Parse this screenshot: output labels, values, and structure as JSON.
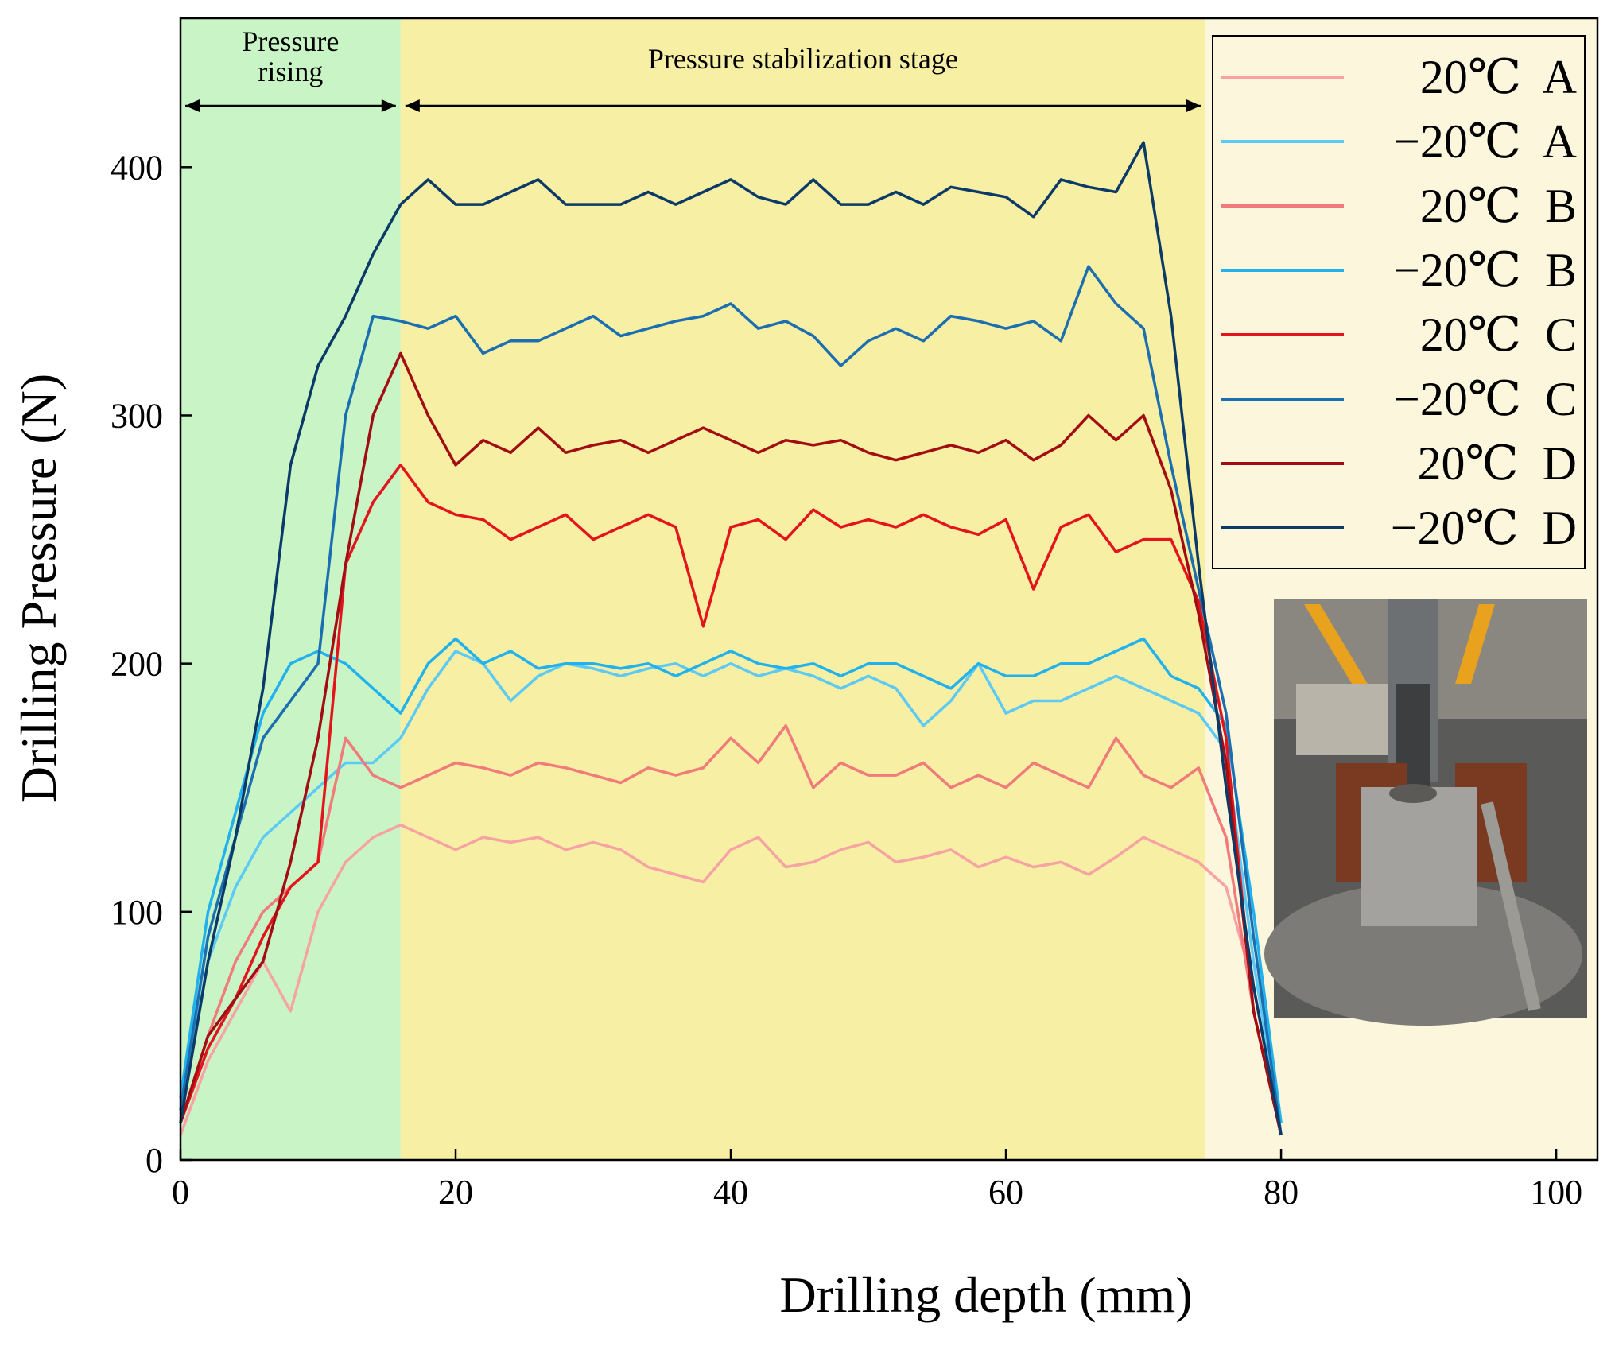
{
  "chart_data": {
    "type": "line",
    "x_label": "Drilling depth (mm)",
    "y_label": "Drilling Pressure (N)",
    "xlim": [
      0,
      103
    ],
    "ylim": [
      0,
      460
    ],
    "xticks": [
      0,
      20,
      40,
      60,
      80,
      100
    ],
    "yticks": [
      0,
      100,
      200,
      300,
      400
    ],
    "legend": "top-right",
    "regions": [
      {
        "label": "Pressure rising",
        "start": 0,
        "end": 16,
        "color": "#c9f5c6"
      },
      {
        "label": "Pressure stabilization stage",
        "start": 16,
        "end": 74.5,
        "color": "#f6efa4"
      }
    ],
    "x": [
      0,
      2,
      4,
      6,
      8,
      10,
      12,
      14,
      16,
      18,
      20,
      22,
      24,
      26,
      28,
      30,
      32,
      34,
      36,
      38,
      40,
      42,
      44,
      46,
      48,
      50,
      52,
      54,
      56,
      58,
      60,
      62,
      64,
      66,
      68,
      70,
      72,
      74,
      76,
      78,
      80
    ],
    "series": [
      {
        "name": "20℃  A",
        "color": "#f7a3a3",
        "values": [
          10,
          40,
          60,
          80,
          60,
          100,
          120,
          130,
          135,
          130,
          125,
          130,
          128,
          130,
          125,
          128,
          125,
          118,
          115,
          112,
          125,
          130,
          118,
          120,
          125,
          128,
          120,
          122,
          125,
          118,
          122,
          118,
          120,
          115,
          122,
          130,
          125,
          120,
          110,
          70,
          10
        ]
      },
      {
        "name": "−20℃  A",
        "color": "#5ccaf5",
        "values": [
          20,
          80,
          110,
          130,
          140,
          150,
          160,
          160,
          170,
          190,
          205,
          200,
          185,
          195,
          200,
          198,
          195,
          198,
          200,
          195,
          200,
          195,
          198,
          195,
          190,
          195,
          190,
          175,
          185,
          200,
          180,
          185,
          185,
          190,
          195,
          190,
          185,
          180,
          165,
          80,
          10
        ]
      },
      {
        "name": "20℃  B",
        "color": "#f17a7a",
        "values": [
          15,
          50,
          80,
          100,
          110,
          120,
          170,
          155,
          150,
          155,
          160,
          158,
          155,
          160,
          158,
          155,
          152,
          158,
          155,
          158,
          170,
          160,
          175,
          150,
          160,
          155,
          155,
          160,
          150,
          155,
          150,
          160,
          155,
          150,
          170,
          155,
          150,
          158,
          130,
          60,
          10
        ]
      },
      {
        "name": "−20℃  B",
        "color": "#21b2ee",
        "values": [
          25,
          100,
          140,
          180,
          200,
          205,
          200,
          190,
          180,
          200,
          210,
          200,
          205,
          198,
          200,
          200,
          198,
          200,
          195,
          200,
          205,
          200,
          198,
          200,
          195,
          200,
          200,
          195,
          190,
          200,
          195,
          195,
          200,
          200,
          205,
          210,
          195,
          190,
          175,
          100,
          15
        ]
      },
      {
        "name": "20℃  C",
        "color": "#e3141b",
        "values": [
          15,
          45,
          65,
          90,
          110,
          120,
          240,
          265,
          280,
          265,
          260,
          258,
          250,
          255,
          260,
          250,
          255,
          260,
          255,
          215,
          255,
          258,
          250,
          262,
          255,
          258,
          255,
          260,
          255,
          252,
          258,
          230,
          255,
          260,
          245,
          250,
          250,
          225,
          170,
          60,
          10
        ]
      },
      {
        "name": "−20℃  C",
        "color": "#1b6fb0",
        "values": [
          20,
          90,
          130,
          170,
          185,
          200,
          300,
          340,
          338,
          335,
          340,
          325,
          330,
          330,
          335,
          340,
          332,
          335,
          338,
          340,
          345,
          335,
          338,
          332,
          320,
          330,
          335,
          330,
          340,
          338,
          335,
          338,
          330,
          360,
          345,
          335,
          280,
          230,
          180,
          90,
          10
        ]
      },
      {
        "name": "20℃  D",
        "color": "#a20d14",
        "values": [
          15,
          50,
          65,
          80,
          120,
          170,
          240,
          300,
          325,
          300,
          280,
          290,
          285,
          295,
          285,
          288,
          290,
          285,
          290,
          295,
          290,
          285,
          290,
          288,
          290,
          285,
          282,
          285,
          288,
          285,
          290,
          282,
          288,
          300,
          290,
          300,
          270,
          220,
          160,
          60,
          10
        ]
      },
      {
        "name": "−20℃  D",
        "color": "#0c3a68",
        "values": [
          15,
          80,
          130,
          190,
          280,
          320,
          340,
          365,
          385,
          395,
          385,
          385,
          390,
          395,
          385,
          385,
          385,
          390,
          385,
          390,
          395,
          388,
          385,
          395,
          385,
          385,
          390,
          385,
          392,
          390,
          388,
          380,
          395,
          392,
          390,
          410,
          340,
          240,
          150,
          70,
          10
        ]
      }
    ]
  }
}
